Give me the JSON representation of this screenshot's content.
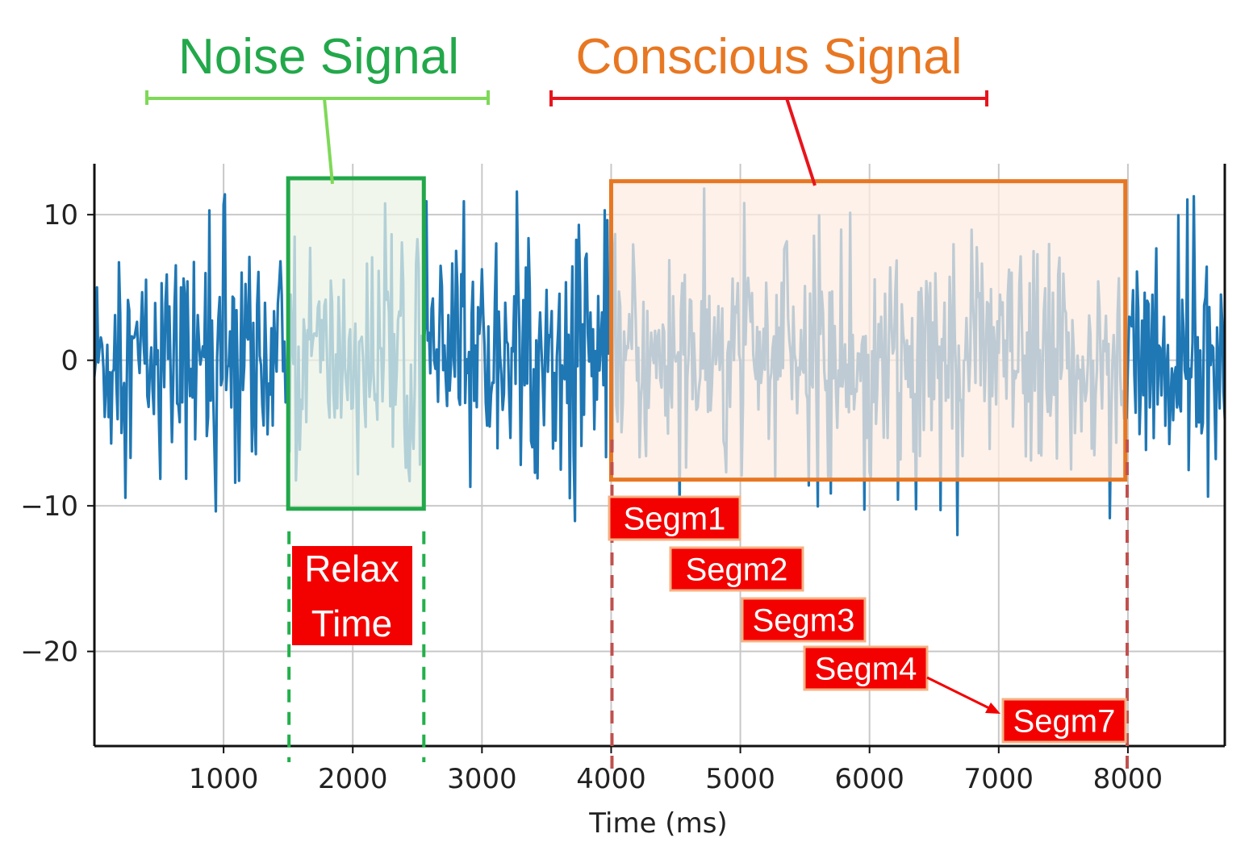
{
  "chart_data": {
    "type": "line",
    "xlabel": "Time (ms)",
    "ylabel": "",
    "xlim": [
      0,
      8750
    ],
    "ylim": [
      -26.5,
      13.5
    ],
    "xticks": [
      1000,
      2000,
      3000,
      4000,
      5000,
      6000,
      7000,
      8000
    ],
    "xtick_labels": [
      "1000",
      "2000",
      "3000",
      "4000",
      "5000",
      "6000",
      "7000",
      "8000"
    ],
    "yticks": [
      10,
      0,
      -10,
      -20
    ],
    "ytick_labels": [
      "10",
      "0",
      "−10",
      "−20"
    ],
    "grid": true,
    "series": [
      {
        "color": "#1f77b4",
        "x_start": 0,
        "x_step": 10,
        "values_note": "",
        "values": []
      }
    ],
    "annotations": {
      "noise_title": "Noise Signal",
      "conscious_title": "Conscious Signal",
      "relax_line1": "Relax",
      "relax_line2": "Time",
      "segments": [
        "Segm1",
        "Segm2",
        "Segm3",
        "Segm4",
        "Segm7"
      ],
      "noise_region": {
        "x": [
          1500,
          2550
        ],
        "y": [
          -10.2,
          12.5
        ]
      },
      "conscious_region": {
        "x": [
          4000,
          7980
        ],
        "y": [
          -8.2,
          12.3
        ]
      },
      "segment_starts": [
        4000,
        4500,
        5000,
        5500,
        7100
      ]
    },
    "colors": {
      "signal": "#1f77b4",
      "noise": "#22a84a",
      "noise_bracket": "#7ed957",
      "conscious": "#e87722",
      "conscious_bracket": "#e8141c",
      "segm_fill": "#f30000",
      "segm_border": "#f4b183",
      "relax_fill": "#f30000",
      "dash_red": "#c0504d",
      "dash_green": "#22b04a"
    }
  }
}
